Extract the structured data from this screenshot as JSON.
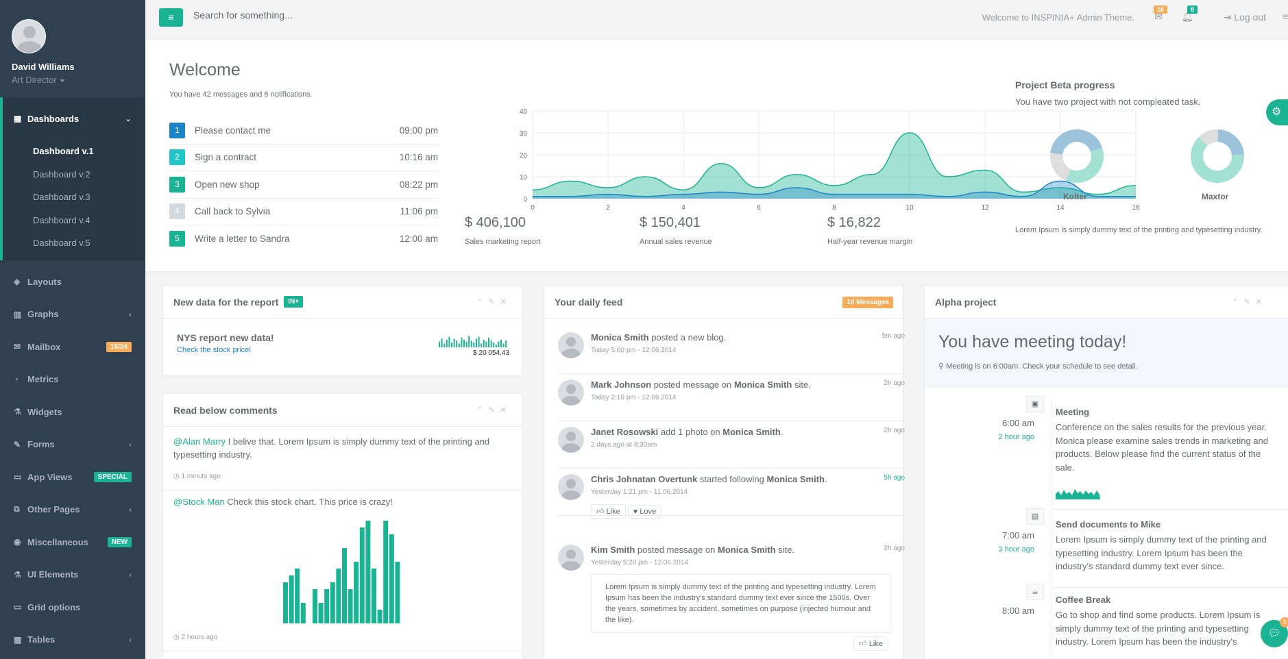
{
  "user": {
    "name": "David Williams",
    "role": "Art Director"
  },
  "nav": {
    "dashboards": "Dashboards",
    "subs": [
      "Dashboard v.1",
      "Dashboard v.2",
      "Dashboard v.3",
      "Dashboard v.4",
      "Dashboard v.5"
    ],
    "items": [
      {
        "label": "Layouts",
        "icon": "◈",
        "badge": ""
      },
      {
        "label": "Graphs",
        "icon": "▥",
        "badge": "",
        "arrow": "‹"
      },
      {
        "label": "Mailbox",
        "icon": "✉",
        "badge": "16/24",
        "badge_color": "#f8ac59"
      },
      {
        "label": "Metrics",
        "icon": "◔",
        "badge": ""
      },
      {
        "label": "Widgets",
        "icon": "⚗",
        "badge": ""
      },
      {
        "label": "Forms",
        "icon": "✎",
        "badge": "",
        "arrow": "‹"
      },
      {
        "label": "App Views",
        "icon": "▭",
        "badge": "SPECIAL",
        "badge_color": "#1ab394"
      },
      {
        "label": "Other Pages",
        "icon": "⧉",
        "badge": "",
        "arrow": "‹"
      },
      {
        "label": "Miscellaneous",
        "icon": "◉",
        "badge": "NEW",
        "badge_color": "#1ab394"
      },
      {
        "label": "UI Elements",
        "icon": "⚗",
        "badge": "",
        "arrow": "‹"
      },
      {
        "label": "Grid options",
        "icon": "▭",
        "badge": ""
      },
      {
        "label": "Tables",
        "icon": "▦",
        "badge": "",
        "arrow": "‹"
      }
    ]
  },
  "topbar": {
    "search_placeholder": "Search for something...",
    "welcome": "Welcome to INSPINIA+ Admin Theme.",
    "mail_count": "16",
    "bell_count": "8",
    "logout": "Log out"
  },
  "hero": {
    "title": "Welcome",
    "subtitle": "You have 42 messages and 6 notifications.",
    "todos": [
      {
        "n": "1",
        "text": "Please contact me",
        "time": "09:00 pm",
        "color": "#1c84c6"
      },
      {
        "n": "2",
        "text": "Sign a contract",
        "time": "10:16 am",
        "color": "#23c6c8"
      },
      {
        "n": "3",
        "text": "Open new shop",
        "time": "08:22 pm",
        "color": "#1ab394"
      },
      {
        "n": "4",
        "text": "Call back to Sylvia",
        "time": "11:06 pm",
        "color": "#d1dade"
      },
      {
        "n": "5",
        "text": "Write a letter to Sandra",
        "time": "12:00 am",
        "color": "#1ab394"
      }
    ],
    "stats": [
      {
        "value": "$ 406,100",
        "label": "Sales marketing report"
      },
      {
        "value": "$ 150,401",
        "label": "Annual sales revenue"
      },
      {
        "value": "$ 16,822",
        "label": "Half-year revenue margin"
      }
    ]
  },
  "chart_data": {
    "type": "area",
    "x": [
      0,
      1,
      2,
      3,
      4,
      5,
      6,
      7,
      8,
      9,
      10,
      11,
      12,
      13,
      14,
      15,
      16
    ],
    "xticks": [
      "0",
      "2",
      "4",
      "6",
      "8",
      "10",
      "12",
      "14",
      "16"
    ],
    "yticks": [
      "0",
      "10",
      "20",
      "30",
      "40"
    ],
    "ylim": [
      0,
      40
    ],
    "xlim": [
      0,
      16
    ],
    "series": [
      {
        "values": [
          4,
          8,
          5,
          10,
          4,
          16,
          5,
          11,
          6,
          11,
          30,
          10,
          13,
          3,
          5,
          2,
          6
        ],
        "color": "#1ab394"
      },
      {
        "values": [
          1,
          1,
          2,
          1,
          2,
          3,
          2,
          5,
          2,
          2,
          2,
          1,
          3,
          1,
          8,
          1,
          1
        ],
        "color": "#1c84c6"
      }
    ]
  },
  "project": {
    "title": "Project Beta progress",
    "subtitle": "You have two project with not compleated task.",
    "donuts": [
      {
        "name": "Kolter"
      },
      {
        "name": "Maxtor"
      }
    ],
    "note": "Lorem Ipsum is simply dummy text of the printing and typesetting industry."
  },
  "report": {
    "title": "New data for the report",
    "label": "IN+",
    "head": "NYS report new data!",
    "link": "Check the stock price!",
    "value": "$ 20 054.43"
  },
  "comments": {
    "title": "Read below comments",
    "c1_user": "@Alan Marry",
    "c1_text": " I belive that. Lorem Ipsum is simply dummy text of the printing and typesetting industry.",
    "c1_time": "1 minuts ago",
    "c2_user": "@Stock Man",
    "c2_text": " Check this stock chart. This price is crazy!",
    "c2_time": "2 hours ago",
    "bars": [
      6,
      7,
      8,
      3,
      0,
      5,
      3,
      5,
      6,
      8,
      11,
      5,
      9,
      14,
      15,
      8,
      2,
      15,
      13,
      9
    ]
  },
  "feed": {
    "title": "Your daily feed",
    "label": "10 Messages",
    "items": [
      {
        "html_a": "Monica Smith",
        "mid": " posted a new blog.",
        "b": "",
        "date": "Today 5:60 pm - 12.06.2014",
        "ago": "5m ago"
      },
      {
        "html_a": "Mark Johnson",
        "mid": " posted message on ",
        "b": "Monica Smith",
        "tail": " site.",
        "date": "Today 2:10 pm - 12.06.2014",
        "ago": "2h ago"
      },
      {
        "html_a": "Janet Rosowski",
        "mid": " add 1 photo on ",
        "b": "Monica Smith",
        "tail": ".",
        "date": "2 days ago at 8:30am",
        "ago": "2h ago"
      },
      {
        "html_a": "Chris Johnatan Overtunk",
        "mid": " started following ",
        "b": "Monica Smith",
        "tail": ".",
        "date": "Yesterday 1:21 pm - 11.06.2014",
        "ago": "5h ago"
      },
      {
        "html_a": "Kim Smith",
        "mid": " posted message on ",
        "b": "Monica Smith",
        "tail": " site.",
        "date": "Yesterday 5:20 pm - 12.06.2014",
        "ago": "2h ago"
      }
    ],
    "like": "Like",
    "love": "Love",
    "quote": "Lorem Ipsum is simply dummy text of the printing and typesetting industry. Lorem Ipsum has been the industry's standard dummy text ever since the 1500s. Over the years, sometimes by accident, sometimes on purpose (injected humour and the like)."
  },
  "alpha": {
    "title": "Alpha project",
    "meeting": "You have meeting today!",
    "meeting_sub": "Meeting is on 6:00am. Check your schedule to see detail.",
    "events": [
      {
        "time": "6:00 am",
        "ago": "2 hour ago",
        "title": "Meeting",
        "text": "Conference on the sales results for the previous year. Monica please examine sales trends in marketing and products. Below please find the current status of the sale."
      },
      {
        "time": "7:00 am",
        "ago": "3 hour ago",
        "title": "Send documents to Mike",
        "text": "Lorem Ipsum is simply dummy text of the printing and typesetting industry. Lorem Ipsum has been the industry's standard dummy text ever since."
      },
      {
        "time": "8:00 am",
        "ago": "",
        "title": "Coffee Break",
        "text": "Go to shop and find some products. Lorem Ipsum is simply dummy text of the printing and typesetting industry. Lorem Ipsum has been the industry's"
      }
    ],
    "chat_count": "5"
  }
}
